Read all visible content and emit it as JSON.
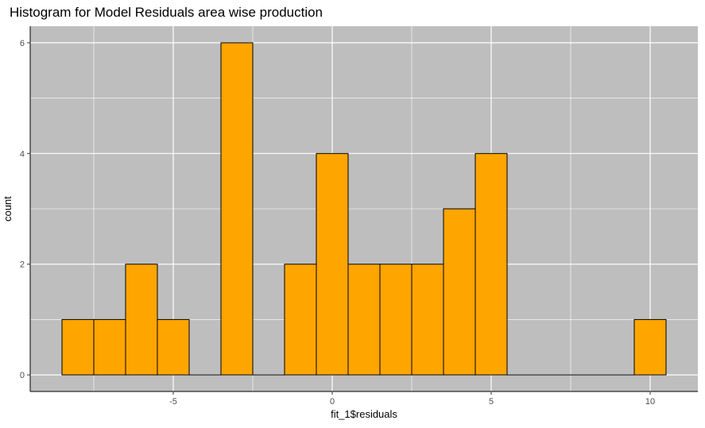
{
  "chart_data": {
    "type": "bar",
    "title": "Histogram for Model Residuals area wise production",
    "xlabel": "fit_1$residuals",
    "ylabel": "count",
    "xlim": [
      -9.5,
      11.5
    ],
    "ylim": [
      -0.3,
      6.3
    ],
    "bin_width": 1,
    "x_ticks": [
      -5,
      0,
      5,
      10
    ],
    "x_tick_labels": [
      "-5",
      "0",
      "5",
      "10"
    ],
    "y_ticks": [
      0,
      2,
      4,
      6
    ],
    "y_tick_labels": [
      "0",
      "2",
      "4",
      "6"
    ],
    "bins": [
      {
        "x": -8,
        "count": 1
      },
      {
        "x": -7,
        "count": 1
      },
      {
        "x": -6,
        "count": 2
      },
      {
        "x": -5,
        "count": 1
      },
      {
        "x": -4,
        "count": 0
      },
      {
        "x": -3,
        "count": 6
      },
      {
        "x": -2,
        "count": 0
      },
      {
        "x": -1,
        "count": 2
      },
      {
        "x": 0,
        "count": 4
      },
      {
        "x": 1,
        "count": 2
      },
      {
        "x": 2,
        "count": 2
      },
      {
        "x": 3,
        "count": 2
      },
      {
        "x": 4,
        "count": 3
      },
      {
        "x": 5,
        "count": 4
      },
      {
        "x": 6,
        "count": 0
      },
      {
        "x": 7,
        "count": 0
      },
      {
        "x": 8,
        "count": 0
      },
      {
        "x": 9,
        "count": 0
      },
      {
        "x": 10,
        "count": 1
      }
    ],
    "grid": true,
    "colors": {
      "panel": "#bebebe",
      "grid": "#ffffff",
      "bar_fill": "#ffa500",
      "bar_outline": "#000000"
    }
  }
}
